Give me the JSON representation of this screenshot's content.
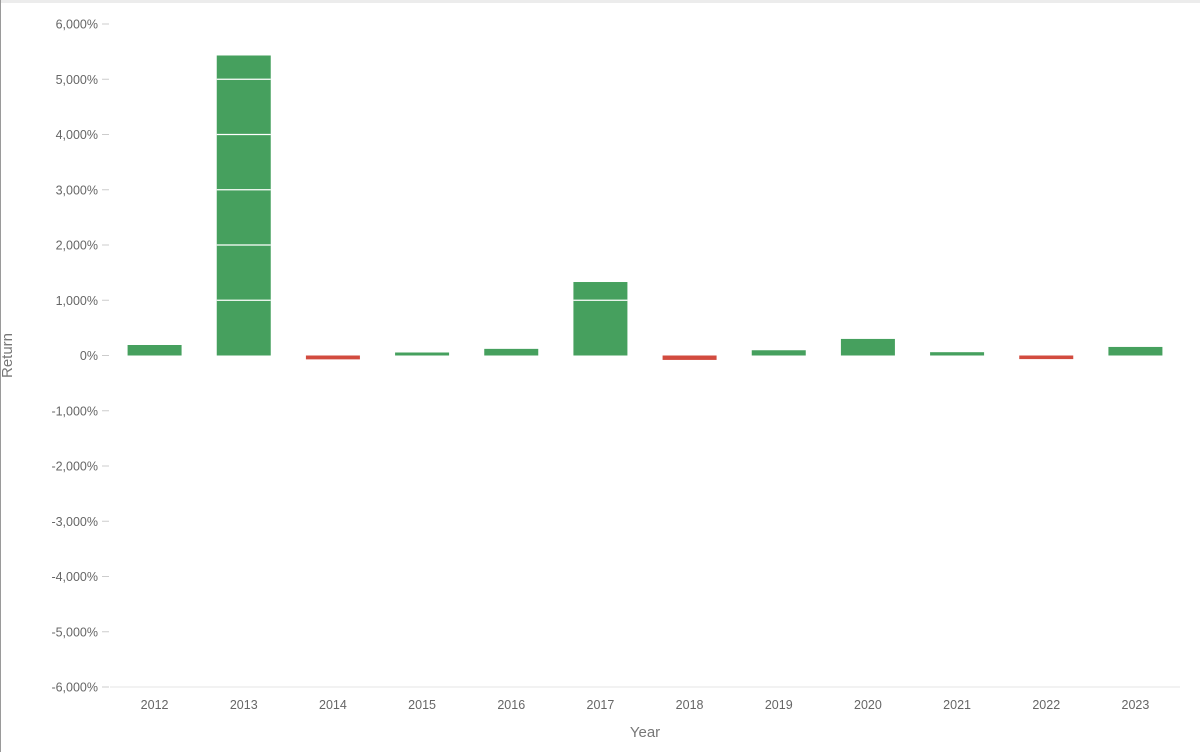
{
  "chart_data": {
    "type": "bar",
    "xlabel": "Year",
    "ylabel": "Return",
    "ylim": [
      -6000,
      6000
    ],
    "y_ticks": [
      6000,
      5000,
      4000,
      3000,
      2000,
      1000,
      0,
      -1000,
      -2000,
      -3000,
      -4000,
      -5000,
      -6000
    ],
    "y_tick_labels": [
      "6,000%",
      "5,000%",
      "4,000%",
      "3,000%",
      "2,000%",
      "1,000%",
      "0%",
      "-1,000%",
      "-2,000%",
      "-3,000%",
      "-4,000%",
      "-5,000%",
      "-6,000%"
    ],
    "categories": [
      "2012",
      "2013",
      "2014",
      "2015",
      "2016",
      "2017",
      "2018",
      "2019",
      "2020",
      "2021",
      "2022",
      "2023"
    ],
    "values": [
      190,
      5430,
      -70,
      30,
      120,
      1330,
      -80,
      95,
      300,
      60,
      -65,
      155
    ],
    "grid": false,
    "legend": "none",
    "colors": {
      "positive": "#46a05e",
      "negative": "#d24b3f",
      "tick": "#cccccc",
      "text": "#666666",
      "baseline": "#e6e6e6"
    }
  }
}
